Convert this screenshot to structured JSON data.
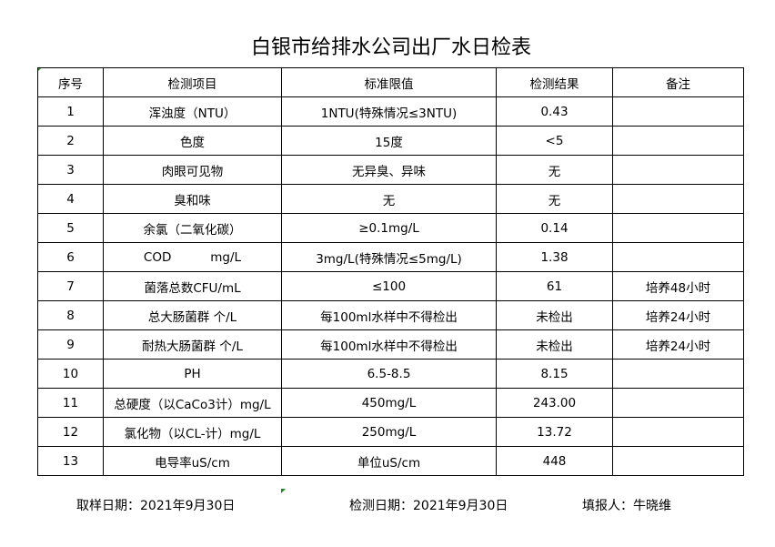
{
  "title": "白银市给排水公司出厂水日检表",
  "headers": [
    "序号",
    "检测项目",
    "标准限值",
    "检测结果",
    "备注"
  ],
  "rows": [
    [
      "1",
      "浑浊度（NTU）",
      "1NTU(特殊情况≤3NTU)",
      "0.43",
      ""
    ],
    [
      "2",
      "色度",
      "15度",
      "<5",
      ""
    ],
    [
      "3",
      "肉眼可见物",
      "无异臭、异味",
      "无",
      ""
    ],
    [
      "4",
      "臭和味",
      "无",
      "无",
      ""
    ],
    [
      "5",
      "余氯（二氧化碳）",
      "≥0.1mg/L",
      "0.14",
      ""
    ],
    [
      "6",
      "COD          mg/L",
      "3mg/L(特殊情况≤5mg/L)",
      "1.38",
      ""
    ],
    [
      "7",
      "菌落总数CFU/mL",
      "≤100",
      "61",
      "培养48小时"
    ],
    [
      "8",
      "总大肠菌群 个/L",
      "每100ml水样中不得检出",
      "未检出",
      "培养24小时"
    ],
    [
      "9",
      "耐热大肠菌群 个/L",
      "每100ml水样中不得检出",
      "未检出",
      "培养24小时"
    ],
    [
      "10",
      "PH",
      "6.5-8.5",
      "8.15",
      ""
    ],
    [
      "11",
      "总硬度（以CaCo3计）mg/L",
      "450mg/L",
      "243.00",
      ""
    ],
    [
      "12",
      "氯化物（以CL-计）mg/L",
      "250mg/L",
      "13.72",
      ""
    ],
    [
      "13",
      "电导率uS/cm",
      "单位uS/cm",
      "448",
      ""
    ]
  ],
  "footer": {
    "sample_date": "取样日期：2021年9月30日",
    "test_date": "检测日期：2021年9月30日",
    "reporter": "填报人：牛晓维"
  }
}
